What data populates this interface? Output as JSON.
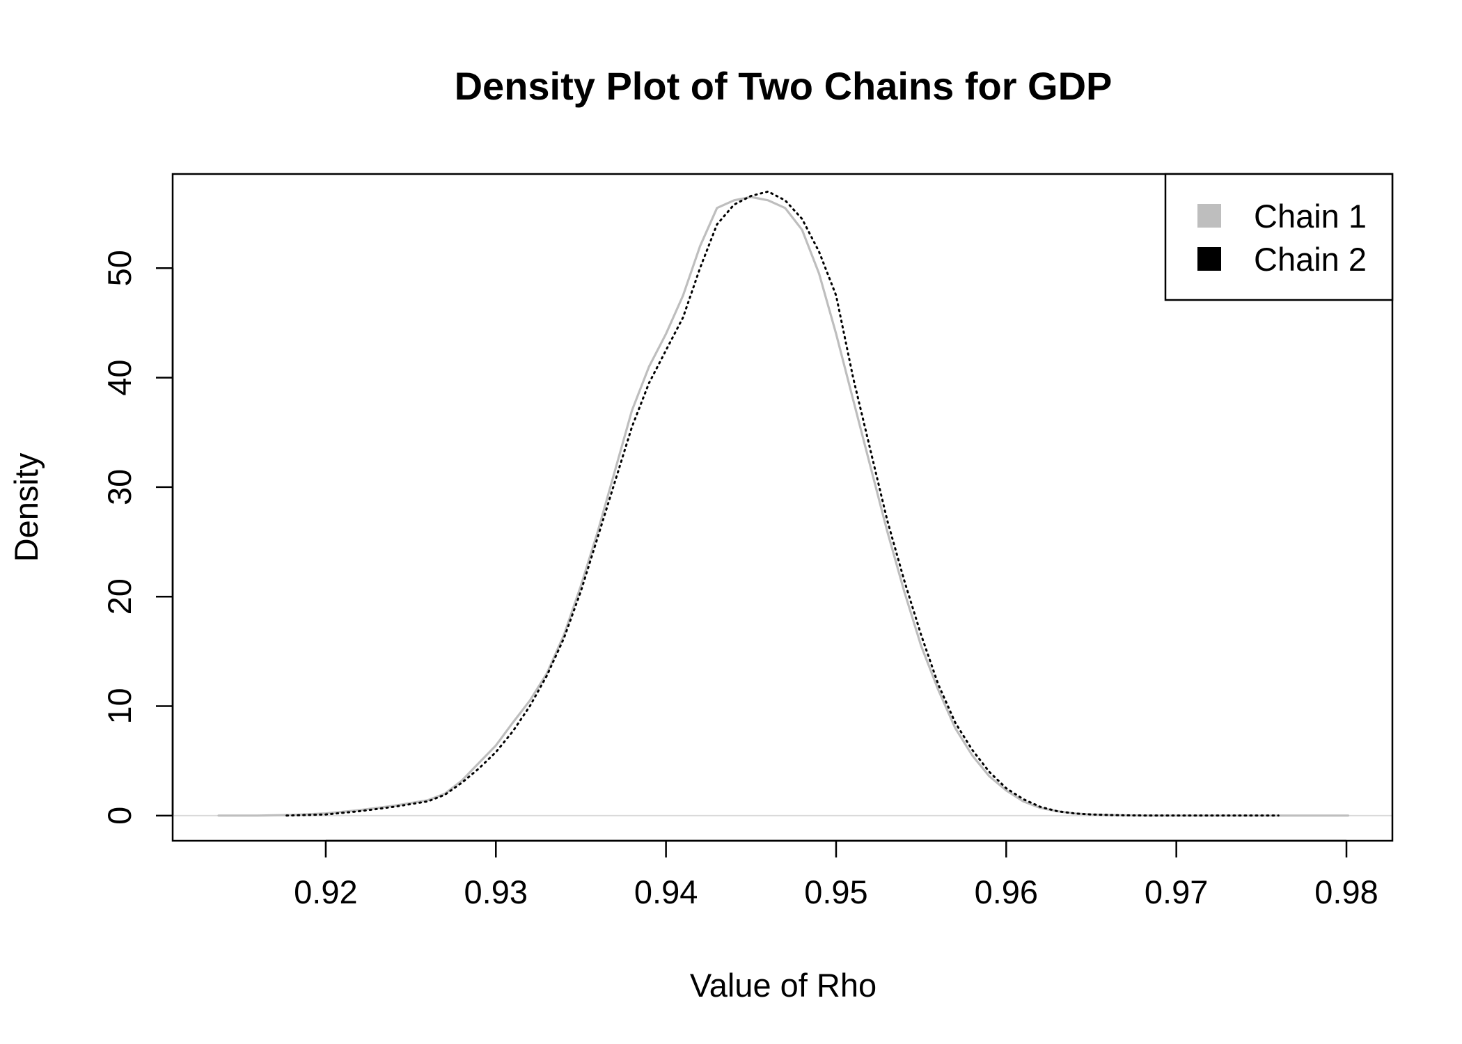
{
  "chart_data": {
    "type": "line",
    "title": "Density Plot of Two Chains for GDP",
    "xlabel": "Value of Rho",
    "ylabel": "Density",
    "xlim": [
      0.911,
      0.9827
    ],
    "ylim": [
      -2.3,
      58.6
    ],
    "x_ticks": [
      0.92,
      0.93,
      0.94,
      0.95,
      0.96,
      0.97,
      0.98
    ],
    "x_tick_labels": [
      "0.92",
      "0.93",
      "0.94",
      "0.95",
      "0.96",
      "0.97",
      "0.98"
    ],
    "y_ticks": [
      0,
      10,
      20,
      30,
      40,
      50
    ],
    "y_tick_labels": [
      "0",
      "10",
      "20",
      "30",
      "40",
      "50"
    ],
    "grid": false,
    "baseline": 0,
    "legend": {
      "position": "top-right",
      "entries": [
        "Chain 1",
        "Chain 2"
      ]
    },
    "series": [
      {
        "name": "Chain 1",
        "color": "#bebebe",
        "line_style": "solid",
        "x": [
          0.9137,
          0.916,
          0.918,
          0.92,
          0.922,
          0.924,
          0.926,
          0.927,
          0.928,
          0.929,
          0.93,
          0.931,
          0.932,
          0.933,
          0.934,
          0.935,
          0.936,
          0.937,
          0.938,
          0.939,
          0.94,
          0.941,
          0.942,
          0.943,
          0.944,
          0.945,
          0.946,
          0.947,
          0.948,
          0.949,
          0.95,
          0.951,
          0.952,
          0.953,
          0.954,
          0.955,
          0.956,
          0.957,
          0.958,
          0.959,
          0.96,
          0.961,
          0.962,
          0.963,
          0.964,
          0.965,
          0.966,
          0.967,
          0.968,
          0.97,
          0.972,
          0.975,
          0.978,
          0.9801
        ],
        "y": [
          0,
          0,
          0.05,
          0.2,
          0.5,
          0.9,
          1.4,
          2.0,
          3.2,
          4.8,
          6.4,
          8.5,
          10.5,
          13.0,
          16.5,
          21.0,
          26.0,
          31.5,
          37.0,
          41.0,
          44.0,
          47.5,
          52.0,
          55.5,
          56.2,
          56.5,
          56.2,
          55.5,
          53.5,
          49.5,
          44.0,
          38.0,
          32.0,
          26.0,
          20.5,
          15.5,
          11.5,
          8.0,
          5.5,
          3.6,
          2.3,
          1.3,
          0.7,
          0.4,
          0.2,
          0.1,
          0.05,
          0.02,
          0.01,
          0,
          0,
          0,
          0,
          0
        ]
      },
      {
        "name": "Chain 2",
        "color": "#000000",
        "line_style": "dotted",
        "x": [
          0.9177,
          0.92,
          0.922,
          0.924,
          0.926,
          0.927,
          0.928,
          0.929,
          0.93,
          0.931,
          0.932,
          0.933,
          0.934,
          0.935,
          0.936,
          0.937,
          0.938,
          0.939,
          0.94,
          0.941,
          0.942,
          0.943,
          0.944,
          0.945,
          0.946,
          0.947,
          0.948,
          0.949,
          0.95,
          0.951,
          0.952,
          0.953,
          0.954,
          0.955,
          0.956,
          0.957,
          0.958,
          0.959,
          0.96,
          0.961,
          0.962,
          0.963,
          0.964,
          0.965,
          0.966,
          0.967,
          0.968,
          0.97,
          0.972,
          0.975,
          0.976
        ],
        "y": [
          0,
          0.1,
          0.4,
          0.8,
          1.3,
          1.9,
          3.0,
          4.3,
          5.8,
          7.7,
          10.0,
          12.8,
          16.2,
          20.5,
          25.5,
          30.5,
          35.5,
          39.5,
          42.5,
          45.5,
          50.0,
          54.0,
          55.8,
          56.6,
          57.0,
          56.2,
          54.5,
          51.5,
          47.5,
          40.0,
          33.5,
          27.0,
          21.5,
          16.5,
          12.0,
          8.5,
          6.0,
          4.0,
          2.5,
          1.5,
          0.8,
          0.4,
          0.2,
          0.1,
          0.05,
          0.02,
          0.01,
          0,
          0,
          0,
          0
        ]
      }
    ]
  }
}
